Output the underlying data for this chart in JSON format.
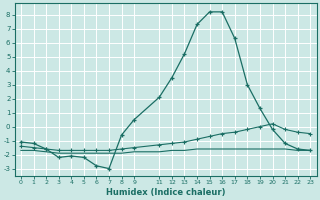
{
  "xlabel": "Humidex (Indice chaleur)",
  "bg_color": "#cce8e5",
  "grid_color": "#ffffff",
  "line_color": "#1a6e64",
  "series1_x": [
    0,
    1,
    2,
    3,
    4,
    5,
    6,
    7,
    8,
    9,
    11,
    12,
    13,
    14,
    15,
    16,
    17,
    18,
    19,
    20,
    21,
    22,
    23
  ],
  "series1_y": [
    -1.1,
    -1.2,
    -1.6,
    -2.2,
    -2.1,
    -2.2,
    -2.8,
    -3.0,
    -0.6,
    0.5,
    2.1,
    3.5,
    5.2,
    7.3,
    8.2,
    8.2,
    6.3,
    3.0,
    1.3,
    -0.2,
    -1.2,
    -1.6,
    -1.7
  ],
  "series2_x": [
    0,
    1,
    2,
    3,
    4,
    5,
    6,
    7,
    8,
    9,
    11,
    12,
    13,
    14,
    15,
    16,
    17,
    18,
    19,
    20,
    21,
    22,
    23
  ],
  "series2_y": [
    -1.4,
    -1.5,
    -1.6,
    -1.7,
    -1.7,
    -1.7,
    -1.7,
    -1.7,
    -1.6,
    -1.5,
    -1.3,
    -1.2,
    -1.1,
    -0.9,
    -0.7,
    -0.5,
    -0.4,
    -0.2,
    0.0,
    0.2,
    -0.2,
    -0.4,
    -0.5
  ],
  "series3_x": [
    0,
    1,
    2,
    3,
    4,
    5,
    6,
    7,
    8,
    9,
    11,
    12,
    13,
    14,
    15,
    16,
    17,
    18,
    19,
    20,
    21,
    22,
    23
  ],
  "series3_y": [
    -1.7,
    -1.7,
    -1.8,
    -1.9,
    -1.9,
    -1.9,
    -1.9,
    -1.9,
    -1.9,
    -1.8,
    -1.8,
    -1.7,
    -1.7,
    -1.6,
    -1.6,
    -1.6,
    -1.6,
    -1.6,
    -1.6,
    -1.6,
    -1.6,
    -1.7,
    -1.7
  ],
  "xlim": [
    -0.5,
    23.5
  ],
  "ylim": [
    -3.5,
    8.8
  ],
  "yticks": [
    -3,
    -2,
    -1,
    0,
    1,
    2,
    3,
    4,
    5,
    6,
    7,
    8
  ],
  "xticks": [
    0,
    1,
    2,
    3,
    4,
    5,
    6,
    7,
    8,
    9,
    11,
    12,
    13,
    14,
    15,
    16,
    17,
    18,
    19,
    20,
    21,
    22,
    23
  ]
}
